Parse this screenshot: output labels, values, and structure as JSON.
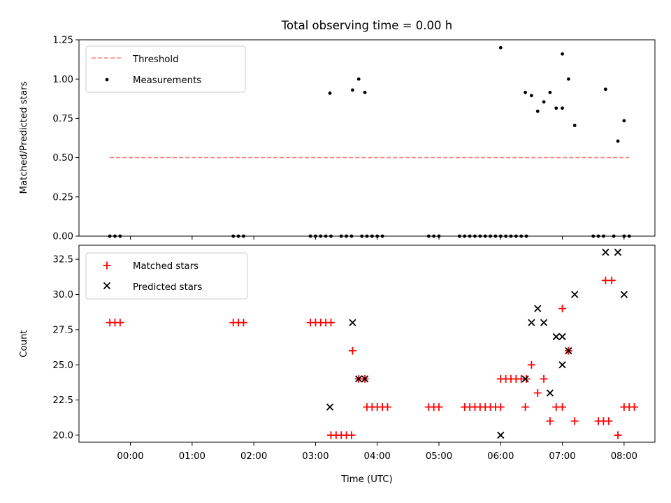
{
  "chart_data": [
    {
      "type": "scatter",
      "title": "Total observing time = 0.00 h",
      "xlabel": "",
      "ylabel": "Matched/Predicted stars",
      "ylim": [
        0,
        1.25
      ],
      "xlim": [
        "23:10",
        "08:30"
      ],
      "grid": false,
      "legend_position": "top-left",
      "yticks": [
        "0.00",
        "0.25",
        "0.50",
        "0.75",
        "1.00",
        "1.25"
      ],
      "legend": [
        "Threshold",
        "Measurements"
      ],
      "threshold": {
        "name": "Threshold",
        "color": "#ff7f7f",
        "style": "dashed",
        "x": [
          "23:40",
          "08:05"
        ],
        "y": 0.5
      },
      "series": [
        {
          "name": "Measurements",
          "color": "#000000",
          "marker": "dot",
          "points": [
            [
              "23:40",
              0
            ],
            [
              "23:45",
              0
            ],
            [
              "23:50",
              0
            ],
            [
              "01:40",
              0
            ],
            [
              "01:45",
              0
            ],
            [
              "01:50",
              0
            ],
            [
              "02:55",
              0
            ],
            [
              "03:00",
              0
            ],
            [
              "03:05",
              0
            ],
            [
              "03:10",
              0
            ],
            [
              "03:15",
              0
            ],
            [
              "03:25",
              0
            ],
            [
              "03:30",
              0
            ],
            [
              "03:35",
              0
            ],
            [
              "03:45",
              0
            ],
            [
              "03:50",
              0
            ],
            [
              "03:55",
              0
            ],
            [
              "04:00",
              0
            ],
            [
              "04:05",
              0
            ],
            [
              "04:50",
              0
            ],
            [
              "04:55",
              0
            ],
            [
              "05:00",
              0
            ],
            [
              "05:20",
              0
            ],
            [
              "05:25",
              0
            ],
            [
              "05:30",
              0
            ],
            [
              "05:35",
              0
            ],
            [
              "05:40",
              0
            ],
            [
              "05:45",
              0
            ],
            [
              "05:50",
              0
            ],
            [
              "05:55",
              0
            ],
            [
              "06:00",
              0
            ],
            [
              "06:05",
              0
            ],
            [
              "06:10",
              0
            ],
            [
              "06:15",
              0
            ],
            [
              "06:20",
              0
            ],
            [
              "06:25",
              0
            ],
            [
              "07:30",
              0
            ],
            [
              "07:35",
              0
            ],
            [
              "07:40",
              0
            ],
            [
              "07:50",
              0
            ],
            [
              "08:00",
              0
            ],
            [
              "08:05",
              0
            ],
            [
              "03:14",
              0.91
            ],
            [
              "03:36",
              0.93
            ],
            [
              "03:42",
              1.0
            ],
            [
              "03:48",
              0.915
            ],
            [
              "06:00",
              1.2
            ],
            [
              "06:24",
              0.915
            ],
            [
              "06:30",
              0.895
            ],
            [
              "06:36",
              0.795
            ],
            [
              "06:42",
              0.855
            ],
            [
              "06:48",
              0.915
            ],
            [
              "06:54",
              0.815
            ],
            [
              "07:00",
              0.815
            ],
            [
              "07:00",
              1.16
            ],
            [
              "07:06",
              1.0
            ],
            [
              "07:12",
              0.705
            ],
            [
              "07:42",
              0.935
            ],
            [
              "07:54",
              0.605
            ],
            [
              "08:00",
              0.735
            ]
          ]
        }
      ]
    },
    {
      "type": "scatter",
      "title": "",
      "xlabel": "Time (UTC)",
      "ylabel": "Count",
      "ylim": [
        19.5,
        33.5
      ],
      "xlim": [
        "23:10",
        "08:30"
      ],
      "grid": false,
      "legend_position": "top-left",
      "yticks": [
        "20.0",
        "22.5",
        "25.0",
        "27.5",
        "30.0",
        "32.5"
      ],
      "xticks": [
        "00:00",
        "01:00",
        "02:00",
        "03:00",
        "04:00",
        "05:00",
        "06:00",
        "07:00",
        "08:00"
      ],
      "legend": [
        "Matched stars",
        "Predicted stars"
      ],
      "series": [
        {
          "name": "Matched stars",
          "color": "#ff0000",
          "marker": "plus",
          "points": [
            [
              "23:40",
              28
            ],
            [
              "23:45",
              28
            ],
            [
              "23:50",
              28
            ],
            [
              "01:40",
              28
            ],
            [
              "01:45",
              28
            ],
            [
              "01:50",
              28
            ],
            [
              "02:55",
              28
            ],
            [
              "03:00",
              28
            ],
            [
              "03:05",
              28
            ],
            [
              "03:10",
              28
            ],
            [
              "03:15",
              28
            ],
            [
              "03:15",
              20
            ],
            [
              "03:20",
              20
            ],
            [
              "03:25",
              20
            ],
            [
              "03:30",
              20
            ],
            [
              "03:35",
              20
            ],
            [
              "03:36",
              26
            ],
            [
              "03:42",
              24
            ],
            [
              "03:48",
              24
            ],
            [
              "03:50",
              22
            ],
            [
              "03:55",
              22
            ],
            [
              "04:00",
              22
            ],
            [
              "04:05",
              22
            ],
            [
              "04:10",
              22
            ],
            [
              "04:50",
              22
            ],
            [
              "04:55",
              22
            ],
            [
              "05:00",
              22
            ],
            [
              "05:25",
              22
            ],
            [
              "05:30",
              22
            ],
            [
              "05:35",
              22
            ],
            [
              "05:40",
              22
            ],
            [
              "05:45",
              22
            ],
            [
              "05:50",
              22
            ],
            [
              "05:55",
              22
            ],
            [
              "06:00",
              22
            ],
            [
              "06:00",
              24
            ],
            [
              "06:05",
              24
            ],
            [
              "06:10",
              24
            ],
            [
              "06:15",
              24
            ],
            [
              "06:20",
              24
            ],
            [
              "06:25",
              24
            ],
            [
              "06:24",
              22
            ],
            [
              "06:30",
              25
            ],
            [
              "06:36",
              23
            ],
            [
              "06:42",
              24
            ],
            [
              "06:48",
              21
            ],
            [
              "06:54",
              22
            ],
            [
              "07:00",
              22
            ],
            [
              "07:00",
              29
            ],
            [
              "07:06",
              26
            ],
            [
              "07:12",
              21
            ],
            [
              "07:35",
              21
            ],
            [
              "07:40",
              21
            ],
            [
              "07:45",
              21
            ],
            [
              "07:42",
              31
            ],
            [
              "07:48",
              31
            ],
            [
              "07:54",
              20
            ],
            [
              "08:00",
              22
            ],
            [
              "08:05",
              22
            ],
            [
              "08:10",
              22
            ]
          ]
        },
        {
          "name": "Predicted stars",
          "color": "#000000",
          "marker": "x",
          "points": [
            [
              "03:14",
              22
            ],
            [
              "03:36",
              28
            ],
            [
              "03:42",
              24
            ],
            [
              "03:48",
              24
            ],
            [
              "06:00",
              20
            ],
            [
              "06:24",
              24
            ],
            [
              "06:30",
              28
            ],
            [
              "06:36",
              29
            ],
            [
              "06:42",
              28
            ],
            [
              "06:48",
              23
            ],
            [
              "06:54",
              27
            ],
            [
              "07:00",
              27
            ],
            [
              "07:00",
              25
            ],
            [
              "07:06",
              26
            ],
            [
              "07:12",
              30
            ],
            [
              "07:42",
              33
            ],
            [
              "07:54",
              33
            ],
            [
              "08:00",
              30
            ]
          ]
        }
      ]
    }
  ]
}
